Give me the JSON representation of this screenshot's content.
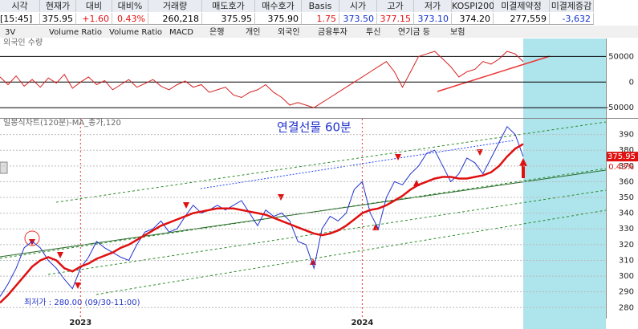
{
  "header": {
    "labels": [
      "시각",
      "현재가",
      "대비",
      "대비%",
      "거래량",
      "매도호가",
      "매수호가",
      "Basis",
      "시가",
      "고가",
      "저가",
      "KOSPI200",
      "미결제약정",
      "미결제증감"
    ],
    "values": [
      "[15:45]",
      "375.95",
      "+1.60",
      "0.43%",
      "260,218",
      "375.95",
      "375.90",
      "1.75",
      "373.50",
      "377.15",
      "373.10",
      "374.20",
      "277,559",
      "-3,632"
    ]
  },
  "tabs": [
    "3V",
    "Volume Ratio",
    "Volume Ratio",
    "MACD",
    "은행",
    "개인",
    "외국인",
    "금융투자",
    "투신",
    "연기금 등",
    "보험"
  ],
  "chart_data": [
    {
      "type": "line",
      "label": "외국인 수량",
      "ylim": [
        -70000,
        85000
      ],
      "yticks": [
        50000,
        0,
        -50000
      ],
      "series": [
        {
          "color": "#d62020",
          "values": [
            10000,
            -5000,
            12000,
            -8000,
            5000,
            -10000,
            8000,
            -2000,
            15000,
            -12000,
            0,
            10000,
            -5000,
            3000,
            -15000,
            -5000,
            5000,
            -10000,
            -3000,
            5000,
            -8000,
            -15000,
            -5000,
            2000,
            -10000,
            -5000,
            -20000,
            -15000,
            -10000,
            -25000,
            -30000,
            -20000,
            -15000,
            -5000,
            -20000,
            -30000,
            -45000,
            -40000,
            -45000,
            -50000,
            -40000,
            -30000,
            -20000,
            -10000,
            0,
            10000,
            20000,
            30000,
            40000,
            20000,
            -10000,
            20000,
            50000,
            55000,
            60000,
            45000,
            30000,
            10000,
            20000,
            25000,
            40000,
            35000,
            45000,
            60000,
            55000,
            40000
          ]
        }
      ]
    },
    {
      "type": "line",
      "title": "연결선물 60분",
      "label": "일봉식차트(120분)-MA_종가,120",
      "ylim": [
        273,
        400
      ],
      "yticks": [
        390,
        380,
        370,
        360,
        350,
        340,
        330,
        320,
        310,
        300,
        290,
        280
      ],
      "xticks": [
        {
          "value": 10,
          "label": "2023"
        },
        {
          "value": 45,
          "label": "2024"
        }
      ],
      "last_value": 375.95,
      "last_change": "0.43%",
      "annotation": "최저가 : 280.00 (09/30-11:00)",
      "series": [
        {
          "color": "#2233cc",
          "values": [
            287,
            295,
            305,
            318,
            322,
            318,
            310,
            305,
            298,
            292,
            305,
            312,
            322,
            318,
            315,
            312,
            310,
            320,
            328,
            330,
            335,
            328,
            330,
            338,
            345,
            340,
            342,
            345,
            342,
            345,
            348,
            340,
            332,
            342,
            338,
            340,
            335,
            322,
            320,
            305,
            330,
            338,
            335,
            340,
            355,
            360,
            340,
            330,
            350,
            360,
            358,
            365,
            370,
            378,
            380,
            370,
            360,
            365,
            375,
            372,
            365,
            375,
            385,
            395,
            390,
            376
          ]
        },
        {
          "color": "#e01010",
          "values": [
            283,
            288,
            294,
            300,
            306,
            310,
            312,
            310,
            305,
            303,
            306,
            308,
            311,
            313,
            315,
            318,
            320,
            323,
            326,
            329,
            332,
            334,
            336,
            338,
            340,
            341,
            342,
            343,
            343,
            343,
            342,
            341,
            340,
            339,
            337,
            335,
            333,
            331,
            329,
            327,
            326,
            327,
            329,
            332,
            336,
            340,
            342,
            343,
            345,
            348,
            351,
            355,
            358,
            360,
            362,
            363,
            363,
            362,
            362,
            363,
            364,
            366,
            370,
            376,
            381,
            384
          ]
        }
      ]
    }
  ]
}
